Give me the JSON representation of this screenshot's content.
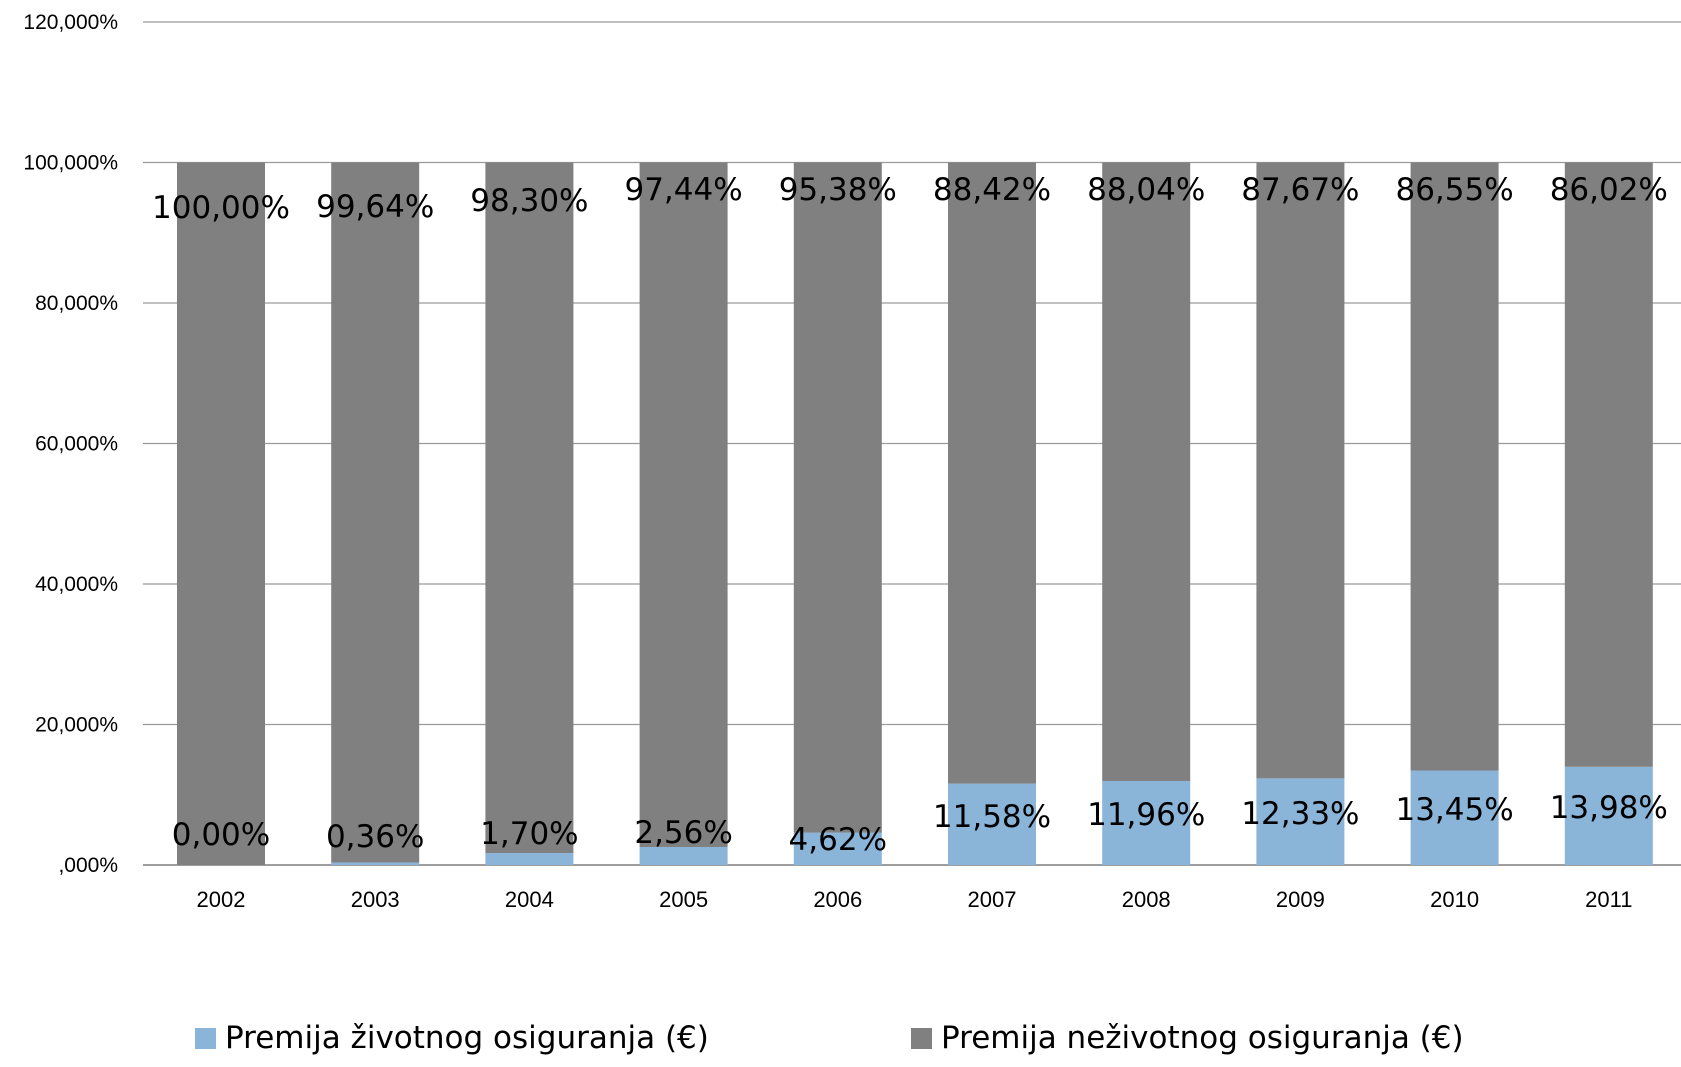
{
  "chart_data": {
    "type": "bar",
    "stacked": true,
    "categories": [
      "2002",
      "2003",
      "2004",
      "2005",
      "2006",
      "2007",
      "2008",
      "2009",
      "2010",
      "2011"
    ],
    "series": [
      {
        "name": "Premija životnog osiguranja (€)",
        "color": "#8ab4d8",
        "values": [
          0.0,
          0.36,
          1.7,
          2.56,
          4.62,
          11.58,
          11.96,
          12.33,
          13.45,
          13.98
        ],
        "labels": [
          "0,00%",
          "0,36%",
          "1,70%",
          "2,56%",
          "4,62%",
          "11,58%",
          "11,96%",
          "12,33%",
          "13,45%",
          "13,98%"
        ]
      },
      {
        "name": "Premija neživotnog osiguranja (€)",
        "color": "#808080",
        "values": [
          100.0,
          99.64,
          98.3,
          97.44,
          95.38,
          88.42,
          88.04,
          87.67,
          86.55,
          86.02
        ],
        "labels": [
          "100,00%",
          "99,64%",
          "98,30%",
          "97,44%",
          "95,38%",
          "88,42%",
          "88,04%",
          "87,67%",
          "86,55%",
          "86,02%"
        ]
      }
    ],
    "yticks": [
      ",000%",
      "20,000%",
      "40,000%",
      "60,000%",
      "80,000%",
      "100,000%",
      "120,000%"
    ],
    "ylim": [
      0,
      120
    ],
    "grid": true,
    "legend_position": "bottom"
  }
}
